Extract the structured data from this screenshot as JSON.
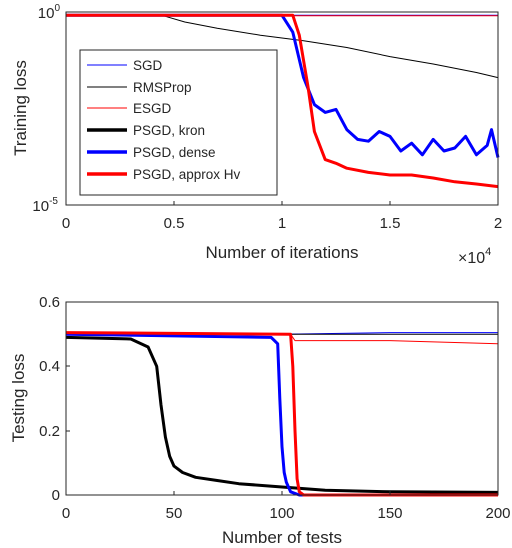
{
  "chart_data": [
    {
      "type": "line",
      "xlabel": "Number of iterations",
      "ylabel": "Training loss",
      "x_exponent_label": "×10",
      "x_exponent_power": "4",
      "xlim": [
        0,
        2
      ],
      "ylim": [
        1e-05,
        1
      ],
      "yscale": "log",
      "xticks": [
        "0",
        "0.5",
        "1",
        "1.5",
        "2"
      ],
      "yticks": [
        {
          "value": 1,
          "base": "10",
          "exp": "0"
        },
        {
          "value": 1e-05,
          "base": "10",
          "exp": "-5"
        }
      ],
      "grid": false,
      "legend_position": "left",
      "series": [
        {
          "name": "SGD",
          "color": "#0000ff",
          "weight": "thin",
          "x": [
            0,
            1.0,
            1.5,
            2.0
          ],
          "y": [
            0.82,
            0.82,
            0.82,
            0.82
          ]
        },
        {
          "name": "RMSProp",
          "color": "#000000",
          "weight": "thin",
          "x": [
            0,
            0.3,
            0.45,
            0.55,
            0.7,
            0.9,
            1.1,
            1.3,
            1.5,
            1.7,
            1.9,
            2.0
          ],
          "y": [
            0.82,
            0.82,
            0.8,
            0.55,
            0.38,
            0.25,
            0.18,
            0.12,
            0.07,
            0.045,
            0.027,
            0.02
          ]
        },
        {
          "name": "ESGD",
          "color": "#ff0000",
          "weight": "thin",
          "x": [
            0,
            2.0
          ],
          "y": [
            0.8,
            0.8
          ]
        },
        {
          "name": "PSGD, kron",
          "color": "#000000",
          "weight": "thick",
          "x": [],
          "y": []
        },
        {
          "name": "PSGD, dense",
          "color": "#0000ff",
          "weight": "thick",
          "x": [
            0,
            1.0,
            1.05,
            1.1,
            1.15,
            1.2,
            1.25,
            1.3,
            1.35,
            1.4,
            1.45,
            1.5,
            1.55,
            1.6,
            1.65,
            1.7,
            1.75,
            1.8,
            1.85,
            1.9,
            1.95,
            1.97,
            2.0
          ],
          "y": [
            0.82,
            0.82,
            0.3,
            0.02,
            0.004,
            0.0025,
            0.003,
            0.0009,
            0.0005,
            0.00045,
            0.0008,
            0.0006,
            0.00025,
            0.0004,
            0.0002,
            0.0005,
            0.00025,
            0.0003,
            0.0006,
            0.0002,
            0.00035,
            0.0009,
            0.00017
          ]
        },
        {
          "name": "PSGD, approx Hv",
          "color": "#ff0000",
          "weight": "thick",
          "x": [
            0,
            1.05,
            1.08,
            1.12,
            1.15,
            1.2,
            1.25,
            1.3,
            1.4,
            1.5,
            1.6,
            1.7,
            1.8,
            1.9,
            2.0
          ],
          "y": [
            0.82,
            0.82,
            0.25,
            0.012,
            0.0008,
            0.00015,
            0.00012,
            9e-05,
            7e-05,
            6e-05,
            6e-05,
            5e-05,
            4e-05,
            3.5e-05,
            3e-05
          ]
        }
      ]
    },
    {
      "type": "line",
      "xlabel": "Number of tests",
      "ylabel": "Testing loss",
      "xlim": [
        0,
        200
      ],
      "ylim": [
        0,
        0.6
      ],
      "xticks": [
        "0",
        "50",
        "100",
        "150",
        "200"
      ],
      "yticks": [
        "0",
        "0.2",
        "0.4",
        "0.6"
      ],
      "grid": false,
      "series": [
        {
          "name": "SGD",
          "color": "#0000ff",
          "weight": "thin",
          "x": [
            0,
            100,
            150,
            200
          ],
          "y": [
            0.5,
            0.5,
            0.505,
            0.505
          ]
        },
        {
          "name": "RMSProp",
          "color": "#000000",
          "weight": "thin",
          "x": [
            0,
            100,
            200
          ],
          "y": [
            0.5,
            0.5,
            0.5
          ]
        },
        {
          "name": "ESGD",
          "color": "#ff0000",
          "weight": "thin",
          "x": [
            0,
            104,
            106,
            150,
            200
          ],
          "y": [
            0.5,
            0.5,
            0.48,
            0.48,
            0.47
          ]
        },
        {
          "name": "PSGD, kron",
          "color": "#000000",
          "weight": "thick",
          "x": [
            0,
            30,
            38,
            42,
            44,
            46,
            48,
            50,
            54,
            60,
            70,
            80,
            100,
            120,
            150,
            200
          ],
          "y": [
            0.49,
            0.485,
            0.46,
            0.4,
            0.28,
            0.18,
            0.12,
            0.09,
            0.07,
            0.055,
            0.045,
            0.035,
            0.025,
            0.015,
            0.01,
            0.008
          ]
        },
        {
          "name": "PSGD, dense",
          "color": "#0000ff",
          "weight": "thick",
          "x": [
            0,
            95,
            98,
            99,
            100,
            101,
            102,
            104,
            108,
            150,
            200
          ],
          "y": [
            0.5,
            0.49,
            0.47,
            0.3,
            0.15,
            0.07,
            0.04,
            0.01,
            0.0,
            0.0,
            0.0
          ]
        },
        {
          "name": "PSGD, approx Hv",
          "color": "#ff0000",
          "weight": "thick",
          "x": [
            0,
            104,
            105,
            106,
            107,
            108,
            110,
            150,
            200
          ],
          "y": [
            0.505,
            0.5,
            0.4,
            0.2,
            0.05,
            0.01,
            0.0,
            0.0,
            0.0
          ]
        }
      ]
    }
  ]
}
